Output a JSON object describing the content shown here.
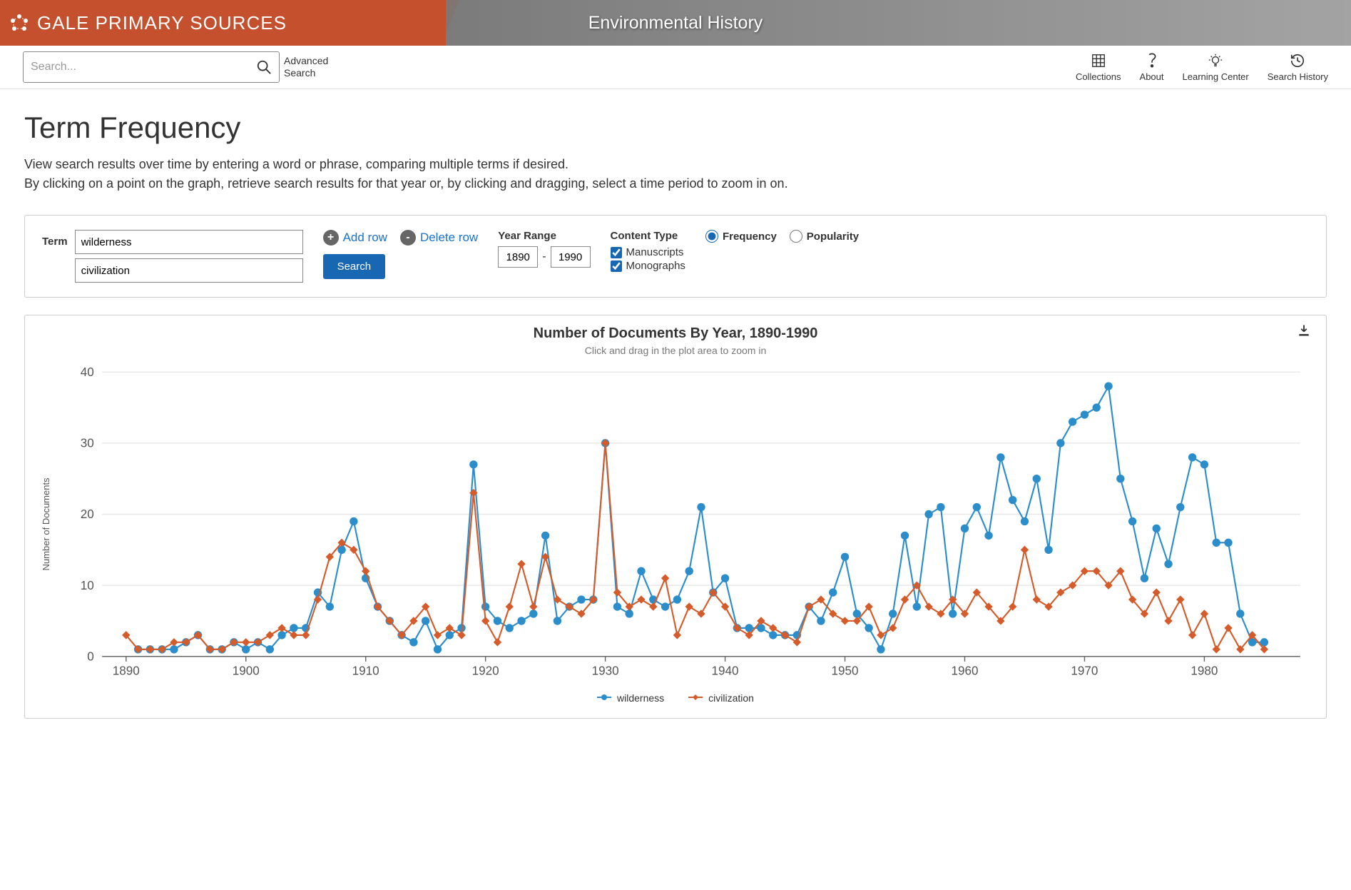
{
  "header": {
    "logo_text": "GALE PRIMARY SOURCES",
    "banner_title": "Environmental History"
  },
  "toolbar": {
    "search_placeholder": "Search...",
    "advanced_search": "Advanced\nSearch",
    "nav": [
      {
        "label": "Collections",
        "icon": "grid"
      },
      {
        "label": "About",
        "icon": "question"
      },
      {
        "label": "Learning Center",
        "icon": "bulb"
      },
      {
        "label": "Search History",
        "icon": "history"
      }
    ]
  },
  "page": {
    "title": "Term Frequency",
    "desc1": "View search results over time by entering a word or phrase, comparing multiple terms if desired.",
    "desc2": "By clicking on a point on the graph, retrieve search results for that year or, by clicking and dragging, select a time period to zoom in on."
  },
  "controls": {
    "term_label": "Term",
    "term1": "wilderness",
    "term2": "civilization",
    "add_row": "Add row",
    "delete_row": "Delete row",
    "search": "Search",
    "year_range_label": "Year Range",
    "year_from": "1890",
    "year_to": "1990",
    "year_sep": "-",
    "content_type_label": "Content Type",
    "ct_manuscripts": "Manuscripts",
    "ct_monographs": "Monographs",
    "freq": "Frequency",
    "pop": "Popularity"
  },
  "chart": {
    "title": "Number of Documents By Year, 1890-1990",
    "subtitle": "Click and drag in the plot area to zoom in",
    "y_axis_label": "Number of Documents",
    "x_ticks": [
      1890,
      1900,
      1910,
      1920,
      1930,
      1940,
      1950,
      1960,
      1970,
      1980
    ],
    "y_ticks": [
      0,
      10,
      20,
      30,
      40
    ],
    "ylim": [
      0,
      40
    ],
    "xlim": [
      1888,
      1988
    ],
    "grid_color": "#e8e8e8",
    "axis_color": "#666",
    "tick_fontsize": 12,
    "legend": [
      {
        "label": "wilderness",
        "color": "#2b8ecb",
        "marker": "circle"
      },
      {
        "label": "civilization",
        "color": "#d55b2b",
        "marker": "diamond"
      }
    ],
    "series": [
      {
        "name": "wilderness",
        "color": "#2b8ecb",
        "marker": "circle",
        "marker_size": 4,
        "line_width": 1.5,
        "data": [
          [
            1891,
            1
          ],
          [
            1892,
            1
          ],
          [
            1893,
            1
          ],
          [
            1894,
            1
          ],
          [
            1895,
            2
          ],
          [
            1896,
            3
          ],
          [
            1897,
            1
          ],
          [
            1898,
            1
          ],
          [
            1899,
            2
          ],
          [
            1900,
            1
          ],
          [
            1901,
            2
          ],
          [
            1902,
            1
          ],
          [
            1903,
            3
          ],
          [
            1904,
            4
          ],
          [
            1905,
            4
          ],
          [
            1906,
            9
          ],
          [
            1907,
            7
          ],
          [
            1908,
            15
          ],
          [
            1909,
            19
          ],
          [
            1910,
            11
          ],
          [
            1911,
            7
          ],
          [
            1912,
            5
          ],
          [
            1913,
            3
          ],
          [
            1914,
            2
          ],
          [
            1915,
            5
          ],
          [
            1916,
            1
          ],
          [
            1917,
            3
          ],
          [
            1918,
            4
          ],
          [
            1919,
            27
          ],
          [
            1920,
            7
          ],
          [
            1921,
            5
          ],
          [
            1922,
            4
          ],
          [
            1923,
            5
          ],
          [
            1924,
            6
          ],
          [
            1925,
            17
          ],
          [
            1926,
            5
          ],
          [
            1927,
            7
          ],
          [
            1928,
            8
          ],
          [
            1929,
            8
          ],
          [
            1930,
            30
          ],
          [
            1931,
            7
          ],
          [
            1932,
            6
          ],
          [
            1933,
            12
          ],
          [
            1934,
            8
          ],
          [
            1935,
            7
          ],
          [
            1936,
            8
          ],
          [
            1937,
            12
          ],
          [
            1938,
            21
          ],
          [
            1939,
            9
          ],
          [
            1940,
            11
          ],
          [
            1941,
            4
          ],
          [
            1942,
            4
          ],
          [
            1943,
            4
          ],
          [
            1944,
            3
          ],
          [
            1945,
            3
          ],
          [
            1946,
            3
          ],
          [
            1947,
            7
          ],
          [
            1948,
            5
          ],
          [
            1949,
            9
          ],
          [
            1950,
            14
          ],
          [
            1951,
            6
          ],
          [
            1952,
            4
          ],
          [
            1953,
            1
          ],
          [
            1954,
            6
          ],
          [
            1955,
            17
          ],
          [
            1956,
            7
          ],
          [
            1957,
            20
          ],
          [
            1958,
            21
          ],
          [
            1959,
            6
          ],
          [
            1960,
            18
          ],
          [
            1961,
            21
          ],
          [
            1962,
            17
          ],
          [
            1963,
            28
          ],
          [
            1964,
            22
          ],
          [
            1965,
            19
          ],
          [
            1966,
            25
          ],
          [
            1967,
            15
          ],
          [
            1968,
            30
          ],
          [
            1969,
            33
          ],
          [
            1970,
            34
          ],
          [
            1971,
            35
          ],
          [
            1972,
            38
          ],
          [
            1973,
            25
          ],
          [
            1974,
            19
          ],
          [
            1975,
            11
          ],
          [
            1976,
            18
          ],
          [
            1977,
            13
          ],
          [
            1978,
            21
          ],
          [
            1979,
            28
          ],
          [
            1980,
            27
          ],
          [
            1981,
            16
          ],
          [
            1982,
            16
          ],
          [
            1983,
            6
          ],
          [
            1984,
            2
          ],
          [
            1985,
            2
          ]
        ]
      },
      {
        "name": "civilization",
        "color": "#d55b2b",
        "marker": "diamond",
        "marker_size": 4,
        "line_width": 1.5,
        "data": [
          [
            1890,
            3
          ],
          [
            1891,
            1
          ],
          [
            1892,
            1
          ],
          [
            1893,
            1
          ],
          [
            1894,
            2
          ],
          [
            1895,
            2
          ],
          [
            1896,
            3
          ],
          [
            1897,
            1
          ],
          [
            1898,
            1
          ],
          [
            1899,
            2
          ],
          [
            1900,
            2
          ],
          [
            1901,
            2
          ],
          [
            1902,
            3
          ],
          [
            1903,
            4
          ],
          [
            1904,
            3
          ],
          [
            1905,
            3
          ],
          [
            1906,
            8
          ],
          [
            1907,
            14
          ],
          [
            1908,
            16
          ],
          [
            1909,
            15
          ],
          [
            1910,
            12
          ],
          [
            1911,
            7
          ],
          [
            1912,
            5
          ],
          [
            1913,
            3
          ],
          [
            1914,
            5
          ],
          [
            1915,
            7
          ],
          [
            1916,
            3
          ],
          [
            1917,
            4
          ],
          [
            1918,
            3
          ],
          [
            1919,
            23
          ],
          [
            1920,
            5
          ],
          [
            1921,
            2
          ],
          [
            1922,
            7
          ],
          [
            1923,
            13
          ],
          [
            1924,
            7
          ],
          [
            1925,
            14
          ],
          [
            1926,
            8
          ],
          [
            1927,
            7
          ],
          [
            1928,
            6
          ],
          [
            1929,
            8
          ],
          [
            1930,
            30
          ],
          [
            1931,
            9
          ],
          [
            1932,
            7
          ],
          [
            1933,
            8
          ],
          [
            1934,
            7
          ],
          [
            1935,
            11
          ],
          [
            1936,
            3
          ],
          [
            1937,
            7
          ],
          [
            1938,
            6
          ],
          [
            1939,
            9
          ],
          [
            1940,
            7
          ],
          [
            1941,
            4
          ],
          [
            1942,
            3
          ],
          [
            1943,
            5
          ],
          [
            1944,
            4
          ],
          [
            1945,
            3
          ],
          [
            1946,
            2
          ],
          [
            1947,
            7
          ],
          [
            1948,
            8
          ],
          [
            1949,
            6
          ],
          [
            1950,
            5
          ],
          [
            1951,
            5
          ],
          [
            1952,
            7
          ],
          [
            1953,
            3
          ],
          [
            1954,
            4
          ],
          [
            1955,
            8
          ],
          [
            1956,
            10
          ],
          [
            1957,
            7
          ],
          [
            1958,
            6
          ],
          [
            1959,
            8
          ],
          [
            1960,
            6
          ],
          [
            1961,
            9
          ],
          [
            1962,
            7
          ],
          [
            1963,
            5
          ],
          [
            1964,
            7
          ],
          [
            1965,
            15
          ],
          [
            1966,
            8
          ],
          [
            1967,
            7
          ],
          [
            1968,
            9
          ],
          [
            1969,
            10
          ],
          [
            1970,
            12
          ],
          [
            1971,
            12
          ],
          [
            1972,
            10
          ],
          [
            1973,
            12
          ],
          [
            1974,
            8
          ],
          [
            1975,
            6
          ],
          [
            1976,
            9
          ],
          [
            1977,
            5
          ],
          [
            1978,
            8
          ],
          [
            1979,
            3
          ],
          [
            1980,
            6
          ],
          [
            1981,
            1
          ],
          [
            1982,
            4
          ],
          [
            1983,
            1
          ],
          [
            1984,
            3
          ],
          [
            1985,
            1
          ]
        ]
      }
    ]
  }
}
